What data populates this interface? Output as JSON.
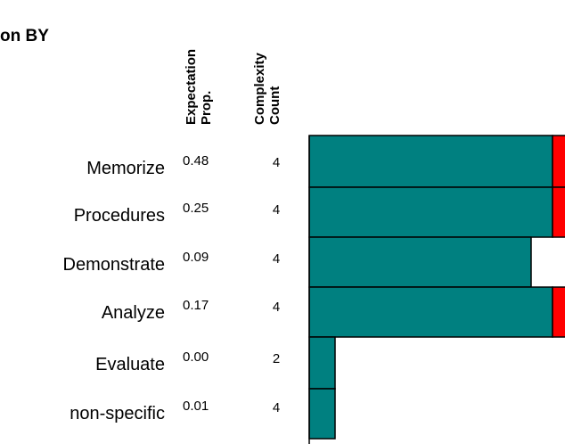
{
  "title": "on BY",
  "columns": [
    [
      "Expectation",
      "Prop."
    ],
    [
      "Complexity",
      "Count"
    ]
  ],
  "rows": [
    {
      "label": "Memorize",
      "prop": "0.48",
      "count": "4"
    },
    {
      "label": "Procedures",
      "prop": "0.25",
      "count": "4"
    },
    {
      "label": "Demonstrate",
      "prop": "0.09",
      "count": "4"
    },
    {
      "label": "Analyze",
      "prop": "0.17",
      "count": "4"
    },
    {
      "label": "Evaluate",
      "prop": "0.00",
      "count": "2"
    },
    {
      "label": "non-specific",
      "prop": "0.01",
      "count": "4"
    }
  ]
}
